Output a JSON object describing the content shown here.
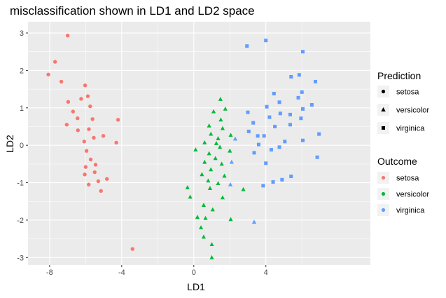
{
  "chart_data": {
    "type": "scatter",
    "title": "misclassification shown in LD1 and LD2 space",
    "xlabel": "LD1",
    "ylabel": "LD2",
    "xlim": [
      -9.2,
      9.8
    ],
    "ylim": [
      -3.2,
      3.3
    ],
    "x_ticks": [
      -8,
      -4,
      0,
      4
    ],
    "y_ticks": [
      -3,
      -2,
      -1,
      0,
      1,
      2,
      3
    ],
    "grid": true,
    "legend_position": "right",
    "colors": {
      "setosa": "#F8766D",
      "versicolor": "#00BA38",
      "virginica": "#619CFF",
      "panel": "#EBEBEB",
      "grid": "#FFFFFF"
    },
    "legend_shape": {
      "title": "Prediction",
      "entries": [
        {
          "label": "setosa",
          "shape": "circle"
        },
        {
          "label": "versicolor",
          "shape": "triangle"
        },
        {
          "label": "virginica",
          "shape": "square"
        }
      ]
    },
    "legend_color": {
      "title": "Outcome",
      "entries": [
        {
          "label": "setosa",
          "color": "#F8766D"
        },
        {
          "label": "versicolor",
          "color": "#00BA38"
        },
        {
          "label": "virginica",
          "color": "#619CFF"
        }
      ]
    },
    "points": [
      {
        "x": -7.0,
        "y": 2.93,
        "outcome": "setosa",
        "prediction": "setosa"
      },
      {
        "x": -7.7,
        "y": 2.23,
        "outcome": "setosa",
        "prediction": "setosa"
      },
      {
        "x": -8.07,
        "y": 1.89,
        "outcome": "setosa",
        "prediction": "setosa"
      },
      {
        "x": -7.35,
        "y": 1.7,
        "outcome": "setosa",
        "prediction": "setosa"
      },
      {
        "x": -6.03,
        "y": 1.6,
        "outcome": "setosa",
        "prediction": "setosa"
      },
      {
        "x": -6.25,
        "y": 1.24,
        "outcome": "setosa",
        "prediction": "setosa"
      },
      {
        "x": -6.97,
        "y": 1.16,
        "outcome": "setosa",
        "prediction": "setosa"
      },
      {
        "x": -5.88,
        "y": 1.31,
        "outcome": "setosa",
        "prediction": "setosa"
      },
      {
        "x": -5.75,
        "y": 1.04,
        "outcome": "setosa",
        "prediction": "setosa"
      },
      {
        "x": -6.7,
        "y": 0.9,
        "outcome": "setosa",
        "prediction": "setosa"
      },
      {
        "x": -6.45,
        "y": 0.72,
        "outcome": "setosa",
        "prediction": "setosa"
      },
      {
        "x": -5.62,
        "y": 0.7,
        "outcome": "setosa",
        "prediction": "setosa"
      },
      {
        "x": -4.2,
        "y": 0.68,
        "outcome": "setosa",
        "prediction": "setosa"
      },
      {
        "x": -7.05,
        "y": 0.55,
        "outcome": "setosa",
        "prediction": "setosa"
      },
      {
        "x": -6.43,
        "y": 0.4,
        "outcome": "setosa",
        "prediction": "setosa"
      },
      {
        "x": -5.82,
        "y": 0.43,
        "outcome": "setosa",
        "prediction": "setosa"
      },
      {
        "x": -5.55,
        "y": 0.2,
        "outcome": "setosa",
        "prediction": "setosa"
      },
      {
        "x": -5.02,
        "y": 0.25,
        "outcome": "setosa",
        "prediction": "setosa"
      },
      {
        "x": -6.08,
        "y": 0.1,
        "outcome": "setosa",
        "prediction": "setosa"
      },
      {
        "x": -4.3,
        "y": 0.07,
        "outcome": "setosa",
        "prediction": "setosa"
      },
      {
        "x": -5.95,
        "y": -0.15,
        "outcome": "setosa",
        "prediction": "setosa"
      },
      {
        "x": -5.72,
        "y": -0.38,
        "outcome": "setosa",
        "prediction": "setosa"
      },
      {
        "x": -5.45,
        "y": -0.52,
        "outcome": "setosa",
        "prediction": "setosa"
      },
      {
        "x": -6.0,
        "y": -0.58,
        "outcome": "setosa",
        "prediction": "setosa"
      },
      {
        "x": -5.5,
        "y": -0.72,
        "outcome": "setosa",
        "prediction": "setosa"
      },
      {
        "x": -6.05,
        "y": -0.78,
        "outcome": "setosa",
        "prediction": "setosa"
      },
      {
        "x": -4.82,
        "y": -0.9,
        "outcome": "setosa",
        "prediction": "setosa"
      },
      {
        "x": -5.3,
        "y": -0.96,
        "outcome": "setosa",
        "prediction": "setosa"
      },
      {
        "x": -5.83,
        "y": -1.05,
        "outcome": "setosa",
        "prediction": "setosa"
      },
      {
        "x": -5.15,
        "y": -1.22,
        "outcome": "setosa",
        "prediction": "setosa"
      },
      {
        "x": -3.4,
        "y": -2.77,
        "outcome": "setosa",
        "prediction": "setosa"
      },
      {
        "x": 1.48,
        "y": 1.23,
        "outcome": "versicolor",
        "prediction": "versicolor"
      },
      {
        "x": 1.75,
        "y": 0.97,
        "outcome": "versicolor",
        "prediction": "versicolor"
      },
      {
        "x": 1.1,
        "y": 0.9,
        "outcome": "versicolor",
        "prediction": "versicolor"
      },
      {
        "x": 1.5,
        "y": 0.68,
        "outcome": "versicolor",
        "prediction": "versicolor"
      },
      {
        "x": 0.85,
        "y": 0.52,
        "outcome": "versicolor",
        "prediction": "versicolor"
      },
      {
        "x": 1.6,
        "y": 0.45,
        "outcome": "versicolor",
        "prediction": "versicolor"
      },
      {
        "x": 0.95,
        "y": 0.3,
        "outcome": "versicolor",
        "prediction": "versicolor"
      },
      {
        "x": 2.05,
        "y": 0.27,
        "outcome": "versicolor",
        "prediction": "versicolor"
      },
      {
        "x": 1.35,
        "y": 0.18,
        "outcome": "versicolor",
        "prediction": "versicolor"
      },
      {
        "x": 0.6,
        "y": 0.07,
        "outcome": "versicolor",
        "prediction": "versicolor"
      },
      {
        "x": 1.25,
        "y": 0.05,
        "outcome": "versicolor",
        "prediction": "versicolor"
      },
      {
        "x": 0.1,
        "y": -0.12,
        "outcome": "versicolor",
        "prediction": "versicolor"
      },
      {
        "x": 1.45,
        "y": -0.05,
        "outcome": "versicolor",
        "prediction": "versicolor"
      },
      {
        "x": 2.0,
        "y": -0.15,
        "outcome": "versicolor",
        "prediction": "versicolor"
      },
      {
        "x": 0.85,
        "y": -0.22,
        "outcome": "versicolor",
        "prediction": "versicolor"
      },
      {
        "x": 1.2,
        "y": -0.35,
        "outcome": "versicolor",
        "prediction": "versicolor"
      },
      {
        "x": 0.6,
        "y": -0.45,
        "outcome": "versicolor",
        "prediction": "versicolor"
      },
      {
        "x": 1.55,
        "y": -0.5,
        "outcome": "versicolor",
        "prediction": "versicolor"
      },
      {
        "x": 0.95,
        "y": -0.65,
        "outcome": "versicolor",
        "prediction": "versicolor"
      },
      {
        "x": 0.45,
        "y": -0.78,
        "outcome": "versicolor",
        "prediction": "versicolor"
      },
      {
        "x": 1.7,
        "y": -0.82,
        "outcome": "versicolor",
        "prediction": "versicolor"
      },
      {
        "x": 0.8,
        "y": -0.95,
        "outcome": "versicolor",
        "prediction": "versicolor"
      },
      {
        "x": 1.35,
        "y": -1.02,
        "outcome": "versicolor",
        "prediction": "versicolor"
      },
      {
        "x": -0.35,
        "y": -1.13,
        "outcome": "versicolor",
        "prediction": "versicolor"
      },
      {
        "x": 0.9,
        "y": -1.15,
        "outcome": "versicolor",
        "prediction": "versicolor"
      },
      {
        "x": 2.75,
        "y": -1.18,
        "outcome": "versicolor",
        "prediction": "versicolor"
      },
      {
        "x": -0.2,
        "y": -1.38,
        "outcome": "versicolor",
        "prediction": "versicolor"
      },
      {
        "x": 1.6,
        "y": -1.4,
        "outcome": "versicolor",
        "prediction": "versicolor"
      },
      {
        "x": 0.55,
        "y": -1.6,
        "outcome": "versicolor",
        "prediction": "versicolor"
      },
      {
        "x": 1.05,
        "y": -1.72,
        "outcome": "versicolor",
        "prediction": "versicolor"
      },
      {
        "x": 0.2,
        "y": -1.92,
        "outcome": "versicolor",
        "prediction": "versicolor"
      },
      {
        "x": 0.65,
        "y": -1.95,
        "outcome": "versicolor",
        "prediction": "versicolor"
      },
      {
        "x": 2.05,
        "y": -1.98,
        "outcome": "versicolor",
        "prediction": "versicolor"
      },
      {
        "x": 0.4,
        "y": -2.2,
        "outcome": "versicolor",
        "prediction": "versicolor"
      },
      {
        "x": 0.55,
        "y": -2.45,
        "outcome": "versicolor",
        "prediction": "versicolor"
      },
      {
        "x": 1.0,
        "y": -2.65,
        "outcome": "versicolor",
        "prediction": "versicolor"
      },
      {
        "x": 1.0,
        "y": -3.0,
        "outcome": "versicolor",
        "prediction": "versicolor"
      },
      {
        "x": 2.3,
        "y": 0.17,
        "outcome": "virginica",
        "prediction": "versicolor"
      },
      {
        "x": 2.1,
        "y": -0.45,
        "outcome": "virginica",
        "prediction": "versicolor"
      },
      {
        "x": 2.03,
        "y": -1.05,
        "outcome": "virginica",
        "prediction": "versicolor"
      },
      {
        "x": 3.35,
        "y": -2.05,
        "outcome": "virginica",
        "prediction": "versicolor"
      },
      {
        "x": 4.0,
        "y": 2.8,
        "outcome": "virginica",
        "prediction": "virginica"
      },
      {
        "x": 2.95,
        "y": 2.65,
        "outcome": "virginica",
        "prediction": "virginica"
      },
      {
        "x": 6.05,
        "y": 2.5,
        "outcome": "virginica",
        "prediction": "virginica"
      },
      {
        "x": 5.85,
        "y": 1.88,
        "outcome": "virginica",
        "prediction": "virginica"
      },
      {
        "x": 5.4,
        "y": 1.83,
        "outcome": "virginica",
        "prediction": "virginica"
      },
      {
        "x": 6.75,
        "y": 1.7,
        "outcome": "virginica",
        "prediction": "virginica"
      },
      {
        "x": 6.0,
        "y": 1.42,
        "outcome": "virginica",
        "prediction": "virginica"
      },
      {
        "x": 4.45,
        "y": 1.38,
        "outcome": "virginica",
        "prediction": "virginica"
      },
      {
        "x": 5.8,
        "y": 1.27,
        "outcome": "virginica",
        "prediction": "virginica"
      },
      {
        "x": 4.75,
        "y": 1.15,
        "outcome": "virginica",
        "prediction": "virginica"
      },
      {
        "x": 6.55,
        "y": 1.08,
        "outcome": "virginica",
        "prediction": "virginica"
      },
      {
        "x": 4.05,
        "y": 1.03,
        "outcome": "virginica",
        "prediction": "virginica"
      },
      {
        "x": 6.05,
        "y": 0.97,
        "outcome": "virginica",
        "prediction": "virginica"
      },
      {
        "x": 3.0,
        "y": 0.88,
        "outcome": "virginica",
        "prediction": "virginica"
      },
      {
        "x": 4.8,
        "y": 0.85,
        "outcome": "virginica",
        "prediction": "virginica"
      },
      {
        "x": 5.35,
        "y": 0.82,
        "outcome": "virginica",
        "prediction": "virginica"
      },
      {
        "x": 4.2,
        "y": 0.75,
        "outcome": "virginica",
        "prediction": "virginica"
      },
      {
        "x": 5.95,
        "y": 0.72,
        "outcome": "virginica",
        "prediction": "virginica"
      },
      {
        "x": 3.3,
        "y": 0.6,
        "outcome": "virginica",
        "prediction": "virginica"
      },
      {
        "x": 5.35,
        "y": 0.55,
        "outcome": "virginica",
        "prediction": "virginica"
      },
      {
        "x": 4.5,
        "y": 0.5,
        "outcome": "virginica",
        "prediction": "virginica"
      },
      {
        "x": 3.05,
        "y": 0.37,
        "outcome": "virginica",
        "prediction": "virginica"
      },
      {
        "x": 6.95,
        "y": 0.3,
        "outcome": "virginica",
        "prediction": "virginica"
      },
      {
        "x": 3.55,
        "y": 0.25,
        "outcome": "virginica",
        "prediction": "virginica"
      },
      {
        "x": 3.9,
        "y": 0.25,
        "outcome": "virginica",
        "prediction": "virginica"
      },
      {
        "x": 6.05,
        "y": 0.13,
        "outcome": "virginica",
        "prediction": "virginica"
      },
      {
        "x": 5.05,
        "y": 0.1,
        "outcome": "virginica",
        "prediction": "virginica"
      },
      {
        "x": 3.6,
        "y": 0.02,
        "outcome": "virginica",
        "prediction": "virginica"
      },
      {
        "x": 4.75,
        "y": -0.05,
        "outcome": "virginica",
        "prediction": "virginica"
      },
      {
        "x": 4.3,
        "y": -0.12,
        "outcome": "virginica",
        "prediction": "virginica"
      },
      {
        "x": 3.35,
        "y": -0.2,
        "outcome": "virginica",
        "prediction": "virginica"
      },
      {
        "x": 6.85,
        "y": -0.32,
        "outcome": "virginica",
        "prediction": "virginica"
      },
      {
        "x": 4.0,
        "y": -0.48,
        "outcome": "virginica",
        "prediction": "virginica"
      },
      {
        "x": 5.4,
        "y": -0.83,
        "outcome": "virginica",
        "prediction": "virginica"
      },
      {
        "x": 4.9,
        "y": -0.92,
        "outcome": "virginica",
        "prediction": "virginica"
      },
      {
        "x": 4.4,
        "y": -0.98,
        "outcome": "virginica",
        "prediction": "virginica"
      },
      {
        "x": 3.85,
        "y": -1.08,
        "outcome": "virginica",
        "prediction": "virginica"
      }
    ]
  }
}
